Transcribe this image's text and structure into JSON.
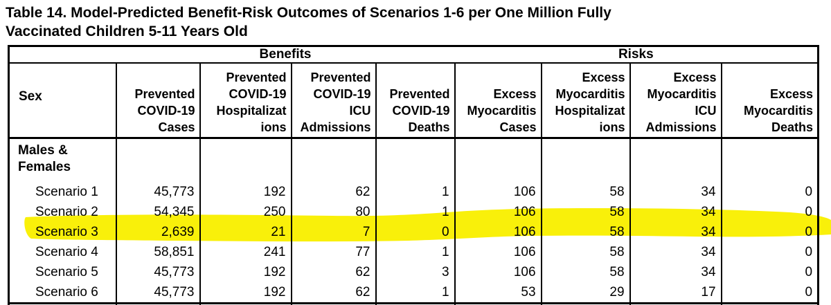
{
  "title": {
    "lines": [
      "Table 14. Model-Predicted Benefit-Risk Outcomes of Scenarios 1-6 per One Million Fully",
      "Vaccinated Children 5-11 Years Old"
    ]
  },
  "table": {
    "group_header": {
      "benefits_label": "Benefits",
      "risks_label": "Risks"
    },
    "sex_header": "Sex",
    "column_headers": [
      {
        "key": "prevented-covid19-cases",
        "lines": [
          "Prevented",
          "COVID-19",
          "Cases"
        ]
      },
      {
        "key": "prevented-covid19-hospitalizations",
        "lines": [
          "Prevented",
          "COVID-19",
          "Hospitalizat",
          "ions"
        ]
      },
      {
        "key": "prevented-covid19-icu-admissions",
        "lines": [
          "Prevented",
          "COVID-19",
          "ICU",
          "Admissions"
        ]
      },
      {
        "key": "prevented-covid19-deaths",
        "lines": [
          "Prevented",
          "COVID-19",
          "Deaths"
        ]
      },
      {
        "key": "excess-myocarditis-cases",
        "lines": [
          "Excess",
          "Myocarditis",
          "Cases"
        ]
      },
      {
        "key": "excess-myocarditis-hospitalizations",
        "lines": [
          "Excess",
          "Myocarditis",
          "Hospitalizat",
          "ions"
        ]
      },
      {
        "key": "excess-myocarditis-icu-admissions",
        "lines": [
          "Excess",
          "Myocarditis",
          "ICU",
          "Admissions"
        ]
      },
      {
        "key": "excess-myocarditis-deaths",
        "lines": [
          "Excess",
          "Myocarditis",
          "Deaths"
        ]
      }
    ],
    "row_group_label": "Males & Females",
    "rows": [
      {
        "label": "Scenario 1",
        "highlighted": false,
        "values": [
          "45,773",
          "192",
          "62",
          "1",
          "106",
          "58",
          "34",
          "0"
        ]
      },
      {
        "label": "Scenario 2",
        "highlighted": false,
        "values": [
          "54,345",
          "250",
          "80",
          "1",
          "106",
          "58",
          "34",
          "0"
        ]
      },
      {
        "label": "Scenario 3",
        "highlighted": true,
        "values": [
          "2,639",
          "21",
          "7",
          "0",
          "106",
          "58",
          "34",
          "0"
        ]
      },
      {
        "label": "Scenario 4",
        "highlighted": false,
        "values": [
          "58,851",
          "241",
          "77",
          "1",
          "106",
          "58",
          "34",
          "0"
        ]
      },
      {
        "label": "Scenario 5",
        "highlighted": false,
        "values": [
          "45,773",
          "192",
          "62",
          "3",
          "106",
          "58",
          "34",
          "0"
        ]
      },
      {
        "label": "Scenario 6",
        "highlighted": false,
        "values": [
          "45,773",
          "192",
          "62",
          "1",
          "53",
          "29",
          "17",
          "0"
        ]
      }
    ],
    "highlight": {
      "row": "Scenario 3",
      "color": "#F9EF00"
    }
  }
}
